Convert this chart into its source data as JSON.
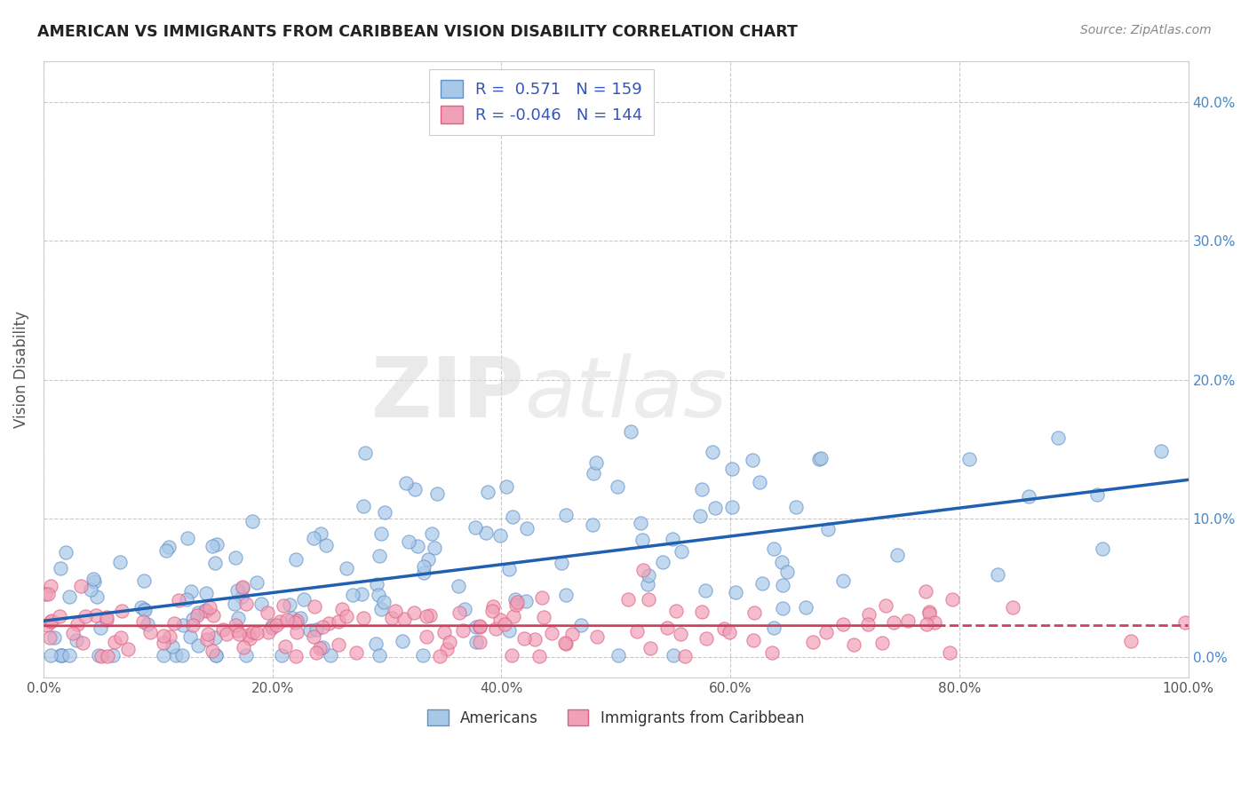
{
  "title": "AMERICAN VS IMMIGRANTS FROM CARIBBEAN VISION DISABILITY CORRELATION CHART",
  "source": "Source: ZipAtlas.com",
  "xlabel": "",
  "ylabel": "Vision Disability",
  "xlim": [
    0,
    1.0
  ],
  "ylim": [
    -0.015,
    0.43
  ],
  "ytick_labels": [
    "0.0%",
    "10.0%",
    "20.0%",
    "30.0%",
    "40.0%"
  ],
  "ytick_vals": [
    0.0,
    0.1,
    0.2,
    0.3,
    0.4
  ],
  "xtick_labels": [
    "0.0%",
    "20.0%",
    "40.0%",
    "60.0%",
    "80.0%",
    "100.0%"
  ],
  "xtick_vals": [
    0.0,
    0.2,
    0.4,
    0.6,
    0.8,
    1.0
  ],
  "r_american": 0.571,
  "n_american": 159,
  "r_caribbean": -0.046,
  "n_caribbean": 144,
  "american_scatter_color": "#a8c8e8",
  "caribbean_scatter_color": "#f0a0b8",
  "american_edge_color": "#6090c8",
  "caribbean_edge_color": "#e06080",
  "trend_american_color": "#2060b0",
  "trend_caribbean_color": "#d04060",
  "legend_label_american": "Americans",
  "legend_label_caribbean": "Immigrants from Caribbean",
  "watermark_zip": "ZIP",
  "watermark_atlas": "atlas",
  "background_color": "#ffffff",
  "grid_color": "#bbbbbb",
  "right_tick_color": "#4488cc",
  "title_color": "#222222",
  "source_color": "#888888",
  "legend_text_color": "#3355bb"
}
